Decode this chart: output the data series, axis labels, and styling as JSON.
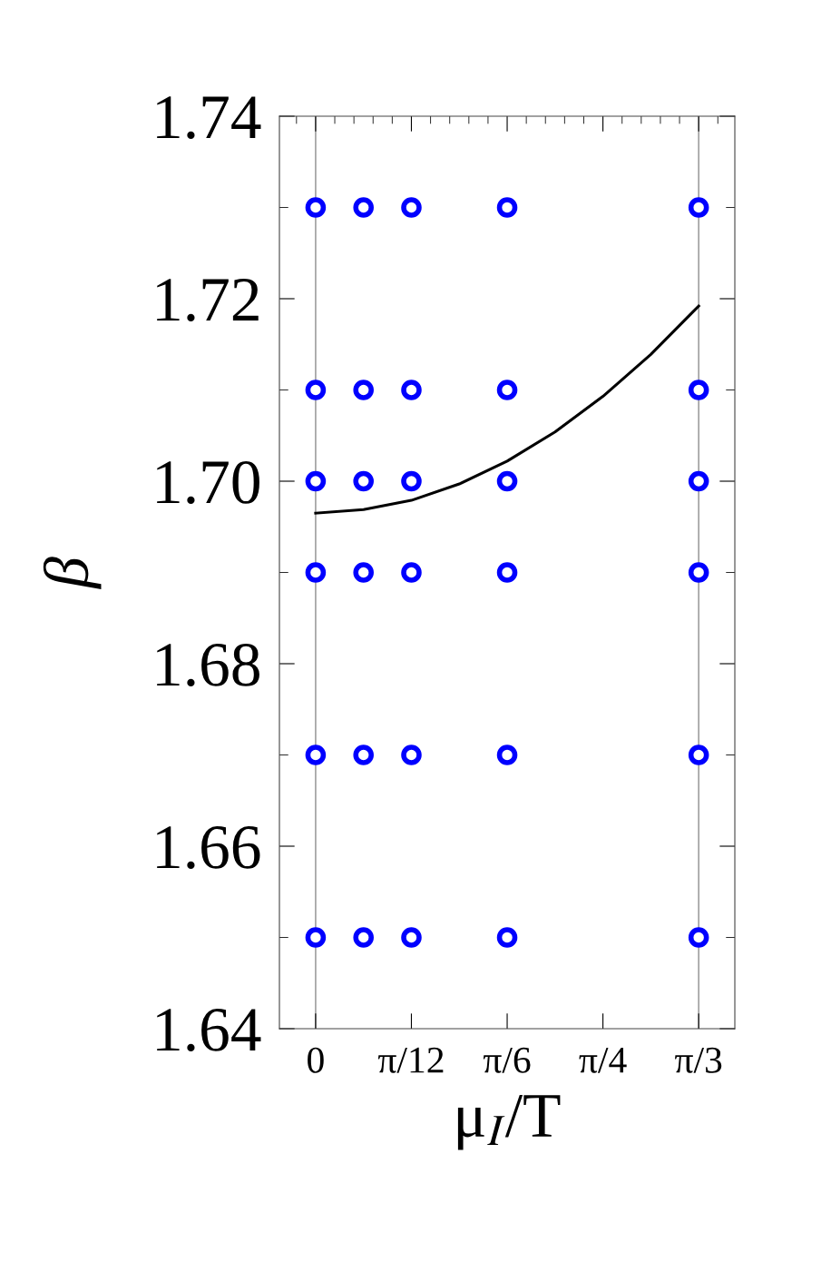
{
  "chart_data": {
    "type": "scatter",
    "xlabel": "μ$_{I}$/T",
    "ylabel": "β",
    "xlim": [
      -0.099,
      1.146
    ],
    "ylim": [
      1.64,
      1.74
    ],
    "xticks": [
      0,
      {
        "value": 0.2618,
        "label": "π/12"
      },
      {
        "value": 0.5236,
        "label": "π/6"
      },
      {
        "value": 0.7854,
        "label": "π/4"
      },
      {
        "value": 1.0472,
        "label": "π/3"
      }
    ],
    "yticks": [
      {
        "value": 1.64,
        "label": "1.64"
      },
      {
        "value": 1.66,
        "label": "1.66"
      },
      {
        "value": 1.68,
        "label": "1.68"
      },
      {
        "value": 1.7,
        "label": "1.70"
      },
      {
        "value": 1.72,
        "label": "1.72"
      },
      {
        "value": 1.74,
        "label": "1.74"
      }
    ],
    "marker": "circle",
    "grid": false,
    "legend": false,
    "ref_lines": [
      {
        "axis": "x",
        "value": 0,
        "color": "#a0a0a0"
      },
      {
        "axis": "x",
        "value": 1.0472,
        "color": "#a0a0a0"
      }
    ],
    "series": [
      {
        "color": "#0000ff",
        "x": [
          0,
          0.1309,
          0.2618,
          0.5236,
          1.0472,
          0,
          0.1309,
          0.2618,
          0.5236,
          1.0472,
          0,
          0.1309,
          0.2618,
          0.5236,
          1.0472,
          0,
          0.1309,
          0.2618,
          0.5236,
          1.0472,
          0,
          0.1309,
          0.2618,
          0.5236,
          1.0472,
          0,
          0.1309,
          0.2618,
          0.5236,
          1.0472
        ],
        "values": [
          1.73,
          1.73,
          1.73,
          1.73,
          1.73,
          1.71,
          1.71,
          1.71,
          1.71,
          1.71,
          1.7,
          1.7,
          1.7,
          1.7,
          1.7,
          1.69,
          1.69,
          1.69,
          1.69,
          1.69,
          1.67,
          1.67,
          1.67,
          1.67,
          1.67,
          1.65,
          1.65,
          1.65,
          1.65,
          1.65
        ]
      },
      {
        "type": "line",
        "color": "#000000",
        "marker": "none",
        "line_style": "solid",
        "x": [
          0,
          0.1309,
          0.2618,
          0.3927,
          0.5236,
          0.6545,
          0.7854,
          0.9163,
          1.0472
        ],
        "values": [
          1.6965,
          1.6969,
          1.6979,
          1.6997,
          1.7022,
          1.7054,
          1.7093,
          1.7139,
          1.7192
        ]
      }
    ]
  }
}
